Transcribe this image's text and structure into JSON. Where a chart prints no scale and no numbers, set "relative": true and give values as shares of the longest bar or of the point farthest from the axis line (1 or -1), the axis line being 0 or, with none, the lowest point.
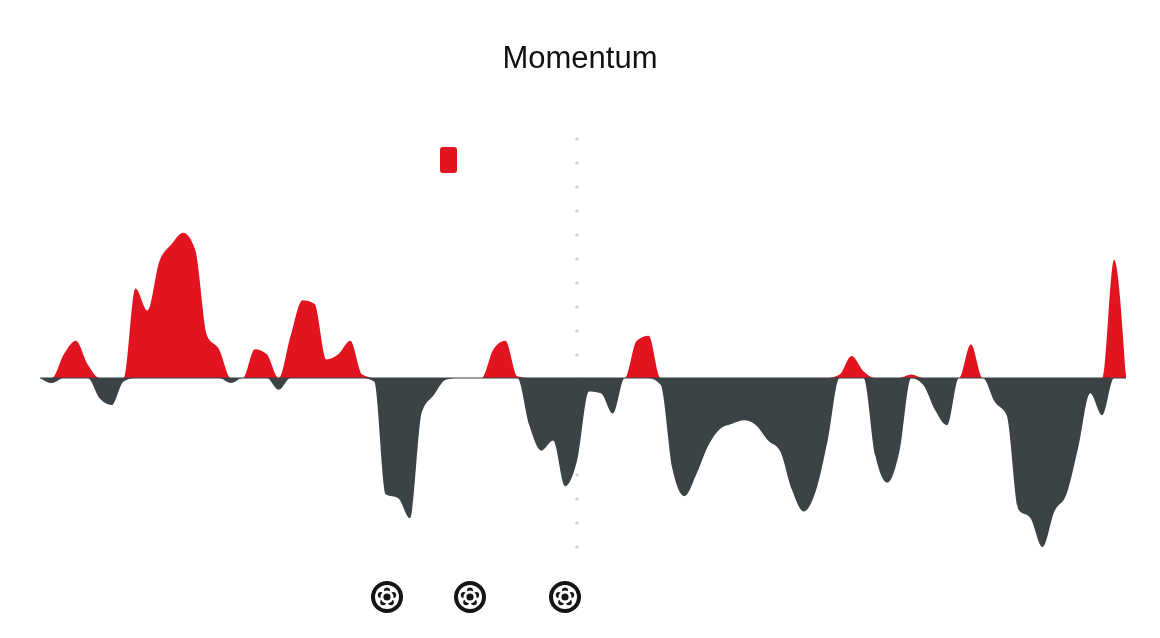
{
  "chart_data": {
    "type": "area",
    "title": "Momentum",
    "relative": true,
    "categories": [
      null,
      null,
      null,
      null,
      null,
      null,
      null,
      null,
      null,
      null,
      null,
      null,
      null,
      null,
      null,
      null,
      null,
      null,
      null,
      null,
      null,
      null,
      null,
      null,
      null,
      null,
      null,
      null,
      null,
      null,
      null,
      null,
      null,
      null,
      null,
      null,
      null,
      null,
      null,
      null,
      null,
      null,
      null,
      null,
      null,
      null,
      null,
      null,
      null,
      null,
      null,
      null,
      null,
      null,
      null,
      null,
      null,
      null,
      null,
      null,
      null,
      null,
      null,
      null,
      null,
      null,
      null,
      null,
      null,
      null,
      null,
      null,
      null,
      null,
      null,
      null,
      null,
      null,
      null,
      null,
      null,
      null,
      null,
      null,
      null,
      null,
      null,
      null,
      null,
      null,
      null,
      null
    ],
    "series": [
      {
        "color": "#e2141f",
        "values": [
          0,
          0,
          0.14,
          0.22,
          0.08,
          0,
          0,
          0,
          0.53,
          0.4,
          0.69,
          0.79,
          0.86,
          0.76,
          0.25,
          0.17,
          0,
          0,
          0.17,
          0.14,
          0,
          0.25,
          0.46,
          0.44,
          0.11,
          0.14,
          0.22,
          0.02,
          0,
          0,
          0,
          0,
          0,
          0,
          0,
          0,
          0,
          0,
          0.17,
          0.22,
          0.01,
          0,
          0,
          0,
          0,
          0,
          0,
          0,
          0,
          0,
          0.22,
          0.25,
          0,
          0,
          0,
          0,
          0,
          0,
          0,
          0,
          0,
          0,
          0,
          0,
          0,
          0,
          0,
          0.02,
          0.13,
          0.04,
          0,
          0,
          0,
          0.02,
          0,
          0,
          0,
          0,
          0.2,
          0,
          0,
          0,
          0,
          0,
          0,
          0,
          0,
          0,
          0,
          0,
          0.7,
          0.02
        ]
      },
      {
        "color": "#3b4346",
        "values": [
          0,
          -0.03,
          0,
          0,
          0,
          -0.12,
          -0.16,
          -0.02,
          0,
          0,
          0,
          0,
          0,
          0,
          0,
          0,
          -0.03,
          0,
          0,
          0,
          -0.07,
          0,
          0,
          0,
          0,
          0,
          0,
          0,
          -0.02,
          -0.69,
          -0.71,
          -0.83,
          -0.2,
          -0.1,
          -0.01,
          0,
          0,
          0,
          0,
          0,
          0,
          -0.28,
          -0.43,
          -0.37,
          -0.64,
          -0.49,
          -0.08,
          -0.09,
          -0.21,
          0,
          0,
          0,
          -0.04,
          -0.54,
          -0.7,
          -0.57,
          -0.4,
          -0.3,
          -0.27,
          -0.25,
          -0.28,
          -0.37,
          -0.43,
          -0.66,
          -0.79,
          -0.67,
          -0.37,
          0,
          0,
          0,
          -0.46,
          -0.62,
          -0.44,
          0,
          -0.04,
          -0.19,
          -0.28,
          0,
          0,
          0,
          -0.14,
          -0.22,
          -0.78,
          -0.83,
          -1,
          -0.79,
          -0.69,
          -0.41,
          -0.09,
          -0.22,
          0,
          0
        ]
      }
    ]
  }
}
